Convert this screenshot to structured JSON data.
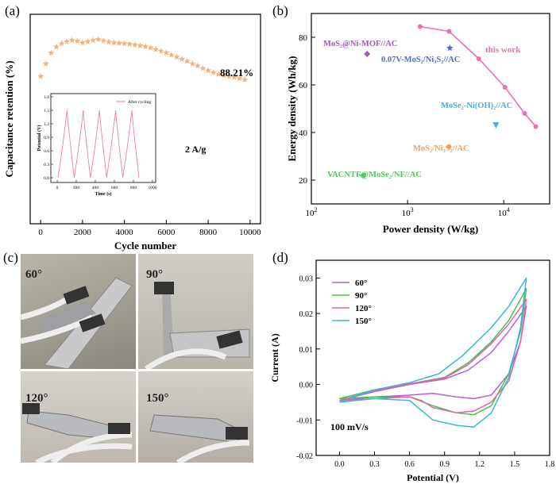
{
  "panel_labels": [
    "(a)",
    "(b)",
    "(c)",
    "(d)"
  ],
  "chart_data": [
    {
      "panel": "(a)",
      "type": "scatter",
      "title": "",
      "xlabel": "Cycle number",
      "ylabel": "Capacitance retention (%)",
      "xlim": [
        -500,
        10500
      ],
      "xticks": [
        0,
        2000,
        4000,
        6000,
        8000,
        10000
      ],
      "marker": "star",
      "color": "#f5b27a",
      "points": [
        [
          0,
          89.0
        ],
        [
          250,
          92.0
        ],
        [
          500,
          94.6
        ],
        [
          750,
          96.0
        ],
        [
          1000,
          96.8
        ],
        [
          1250,
          97.3
        ],
        [
          1500,
          97.6
        ],
        [
          1750,
          97.4
        ],
        [
          2000,
          97.0
        ],
        [
          2250,
          97.3
        ],
        [
          2500,
          97.6
        ],
        [
          2750,
          97.8
        ],
        [
          3000,
          97.5
        ],
        [
          3250,
          97.2
        ],
        [
          3500,
          97.0
        ],
        [
          3750,
          96.9
        ],
        [
          4000,
          96.8
        ],
        [
          4250,
          96.7
        ],
        [
          4500,
          96.5
        ],
        [
          4750,
          96.3
        ],
        [
          5000,
          96.1
        ],
        [
          5250,
          95.8
        ],
        [
          5500,
          95.4
        ],
        [
          5750,
          95.0
        ],
        [
          6000,
          94.6
        ],
        [
          6250,
          94.1
        ],
        [
          6500,
          93.6
        ],
        [
          6750,
          93.1
        ],
        [
          7000,
          92.6
        ],
        [
          7250,
          92.0
        ],
        [
          7500,
          91.5
        ],
        [
          7750,
          90.9
        ],
        [
          8000,
          90.4
        ],
        [
          8250,
          89.9
        ],
        [
          8500,
          89.5
        ],
        [
          8750,
          89.2
        ],
        [
          9000,
          89.0
        ],
        [
          9250,
          88.8
        ],
        [
          9500,
          88.5
        ],
        [
          9750,
          88.21
        ]
      ],
      "annotations": [
        "88.21%",
        "2 A/g"
      ],
      "inset": {
        "xlabel": "Time (s)",
        "ylabel": "Potential (V)",
        "legend": "After cycling",
        "xlim": [
          0,
          1000
        ],
        "ylim": [
          0,
          1.8
        ],
        "xticks": [
          0,
          200,
          400,
          600,
          800,
          1000
        ],
        "yticks": [
          0.0,
          0.3,
          0.6,
          0.9,
          1.2,
          1.5,
          1.8
        ],
        "xtick_labels": [
          "0",
          "200",
          "400",
          "600",
          "800",
          "1000"
        ],
        "ytick_labels": [
          "0.0",
          "0.3",
          "0.6",
          "0.9",
          "1.2",
          "1.5",
          "1.8"
        ],
        "color": "#ee7fb0",
        "cycles": 5,
        "charge_time": 95,
        "discharge_time": 75,
        "vmax": 1.5
      }
    },
    {
      "panel": "(b)",
      "type": "scatter",
      "title": "",
      "xlabel": "Power density (W/kg)",
      "ylabel": "Energy density (Wh/kg)",
      "xscale": "log",
      "xlim": [
        100,
        30000
      ],
      "ylim": [
        10,
        90
      ],
      "yticks": [
        20,
        40,
        60,
        80
      ],
      "xticks": [
        100,
        1000,
        10000
      ],
      "this_work": {
        "label": "this work",
        "color": "#ee6fb5",
        "points": [
          [
            1350,
            84.5
          ],
          [
            2700,
            82.5
          ],
          [
            5500,
            71
          ],
          [
            10300,
            59
          ],
          [
            16500,
            48
          ],
          [
            21500,
            42.5
          ]
        ]
      },
      "comparisons": [
        {
          "label": "MoS₂@Ni-MOF//AC",
          "x": 380,
          "y": 73,
          "color": "#a855c8",
          "marker": "diamond"
        },
        {
          "label": "0.07V-MoS₂/Ni₃S₂//AC",
          "x": 2750,
          "y": 75.5,
          "color": "#4a6fd4",
          "marker": "star"
        },
        {
          "label": "MoSe₂-Ni(OH)₂//AC",
          "x": 8300,
          "y": 43,
          "color": "#43b0e8",
          "marker": "triangle"
        },
        {
          "label": "MoS₂/Ni₃S₂//AC",
          "x": 2700,
          "y": 34,
          "color": "#f0a060",
          "marker": "circle"
        },
        {
          "label": "VACNTF@MoSe₂/NF//AC",
          "x": 335,
          "y": 22,
          "color": "#55c85a",
          "marker": "triangle-left"
        }
      ]
    },
    {
      "panel": "(d)",
      "type": "line",
      "title": "",
      "xlabel": "Potential (V)",
      "ylabel": "Current (A)",
      "xlim": [
        -0.2,
        1.8
      ],
      "ylim": [
        -0.02,
        0.035
      ],
      "xticks": [
        0.0,
        0.3,
        0.6,
        0.9,
        1.2,
        1.5,
        1.8
      ],
      "yticks": [
        -0.02,
        -0.01,
        0.0,
        0.01,
        0.02,
        0.03
      ],
      "xtick_labels": [
        "0.0",
        "0.3",
        "0.6",
        "0.9",
        "1.2",
        "1.5",
        "1.8"
      ],
      "ytick_labels": [
        "-0.02",
        "-0.01",
        "0.00",
        "0.01",
        "0.02",
        "0.03"
      ],
      "annotation": "100 mV/s",
      "series": [
        {
          "name": "60°",
          "color": "#b35fd6",
          "anodic": [
            [
              0,
              -0.0045
            ],
            [
              0.3,
              -0.002
            ],
            [
              0.6,
              0.0
            ],
            [
              0.9,
              0.0015
            ],
            [
              1.1,
              0.004
            ],
            [
              1.3,
              0.009
            ],
            [
              1.45,
              0.015
            ],
            [
              1.6,
              0.022
            ]
          ],
          "cathodic": [
            [
              1.6,
              0.022
            ],
            [
              1.55,
              0.012
            ],
            [
              1.45,
              0.003
            ],
            [
              1.3,
              -0.003
            ],
            [
              1.15,
              -0.004
            ],
            [
              1.0,
              -0.0035
            ],
            [
              0.8,
              -0.0025
            ],
            [
              0.6,
              -0.003
            ],
            [
              0.3,
              -0.0035
            ],
            [
              0.0,
              -0.0045
            ]
          ]
        },
        {
          "name": "90°",
          "color": "#3ec843",
          "anodic": [
            [
              0,
              -0.004
            ],
            [
              0.3,
              -0.0015
            ],
            [
              0.6,
              0.0002
            ],
            [
              0.9,
              0.002
            ],
            [
              1.1,
              0.006
            ],
            [
              1.3,
              0.012
            ],
            [
              1.45,
              0.018
            ],
            [
              1.6,
              0.027
            ]
          ],
          "cathodic": [
            [
              1.6,
              0.027
            ],
            [
              1.55,
              0.015
            ],
            [
              1.45,
              0.003
            ],
            [
              1.3,
              -0.006
            ],
            [
              1.15,
              -0.0085
            ],
            [
              1.0,
              -0.008
            ],
            [
              0.8,
              -0.006
            ],
            [
              0.6,
              -0.0035
            ],
            [
              0.3,
              -0.0035
            ],
            [
              0.0,
              -0.004
            ]
          ]
        },
        {
          "name": "120°",
          "color": "#ee5fa5",
          "anodic": [
            [
              0,
              -0.0045
            ],
            [
              0.3,
              -0.0017
            ],
            [
              0.6,
              0.0002
            ],
            [
              0.9,
              0.0018
            ],
            [
              1.1,
              0.0055
            ],
            [
              1.3,
              0.0115
            ],
            [
              1.45,
              0.017
            ],
            [
              1.6,
              0.024
            ]
          ],
          "cathodic": [
            [
              1.6,
              0.024
            ],
            [
              1.55,
              0.012
            ],
            [
              1.45,
              0.001
            ],
            [
              1.3,
              -0.005
            ],
            [
              1.15,
              -0.0075
            ],
            [
              1.0,
              -0.008
            ],
            [
              0.8,
              -0.0065
            ],
            [
              0.7,
              -0.0045
            ],
            [
              0.6,
              -0.0035
            ],
            [
              0.3,
              -0.004
            ],
            [
              0.0,
              -0.0045
            ]
          ]
        },
        {
          "name": "150°",
          "color": "#38b4e6",
          "anodic": [
            [
              0,
              -0.005
            ],
            [
              0.3,
              -0.0015
            ],
            [
              0.6,
              0.0005
            ],
            [
              0.85,
              0.003
            ],
            [
              1.05,
              0.008
            ],
            [
              1.3,
              0.016
            ],
            [
              1.45,
              0.022
            ],
            [
              1.6,
              0.03
            ]
          ],
          "cathodic": [
            [
              1.6,
              0.03
            ],
            [
              1.55,
              0.016
            ],
            [
              1.45,
              0.002
            ],
            [
              1.3,
              -0.008
            ],
            [
              1.15,
              -0.012
            ],
            [
              1.0,
              -0.0115
            ],
            [
              0.8,
              -0.01
            ],
            [
              0.6,
              -0.0045
            ],
            [
              0.3,
              -0.004
            ],
            [
              0.0,
              -0.005
            ]
          ]
        }
      ]
    }
  ],
  "photos": [
    {
      "angle": "60°"
    },
    {
      "angle": "90°"
    },
    {
      "angle": "120°"
    },
    {
      "angle": "150°"
    }
  ]
}
